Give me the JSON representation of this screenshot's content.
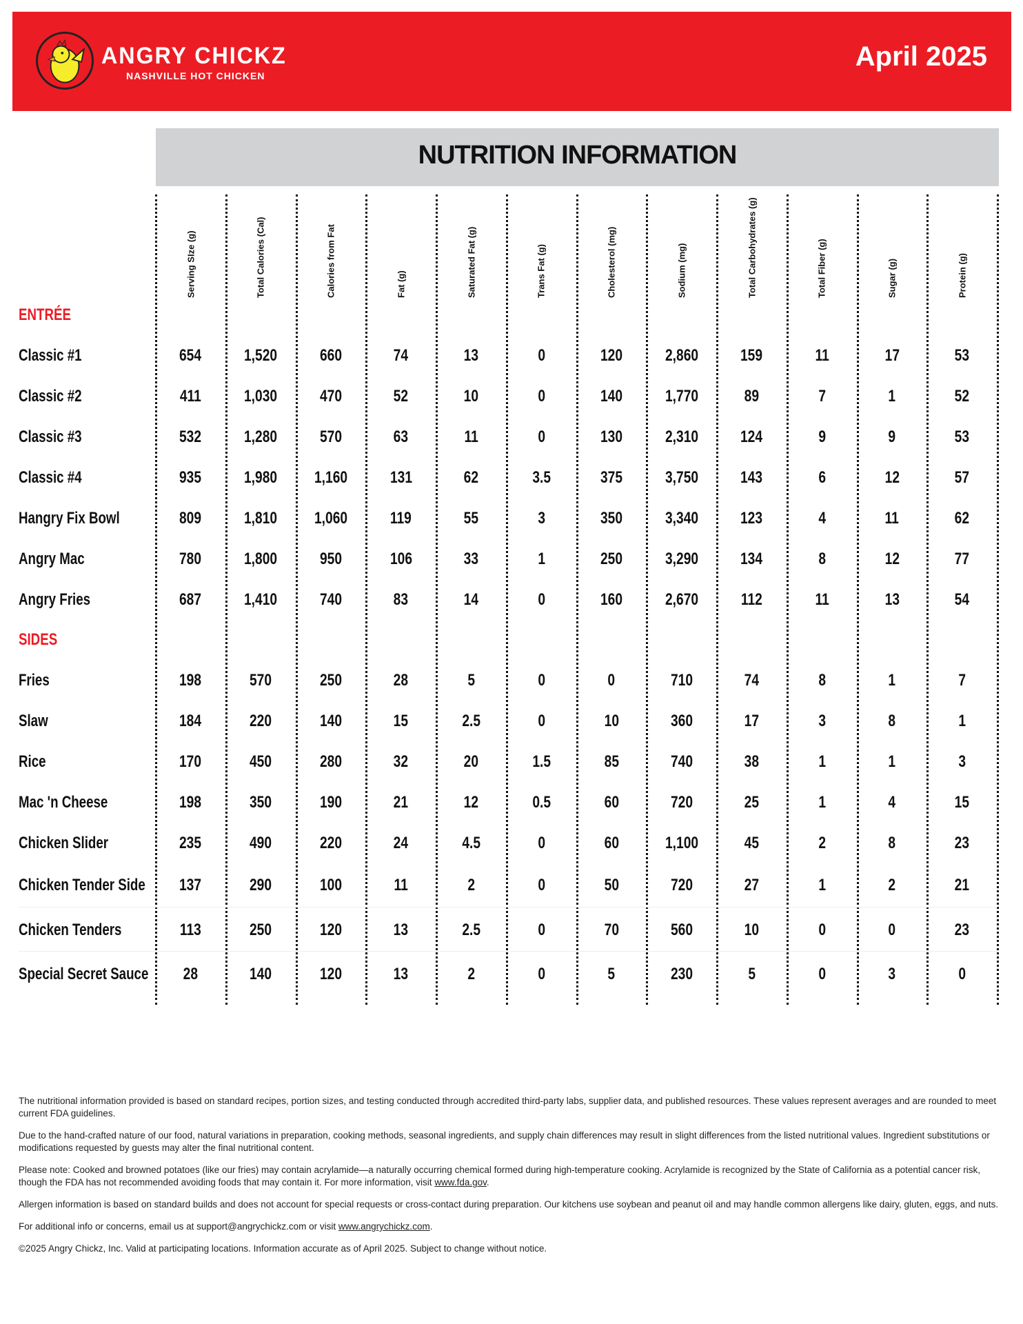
{
  "header": {
    "brand": "ANGRY CHICKZ",
    "tagline": "NASHVILLE HOT CHICKEN",
    "date": "April 2025",
    "brand_color": "#ec1c24"
  },
  "title": "NUTRITION INFORMATION",
  "columns": [
    "Serving SIze (g)",
    "Total Calories (Cal)",
    "Calories from Fat",
    "Fat (g)",
    "Saturated Fat (g)",
    "Trans Fat (g)",
    "Cholesterol (mg)",
    "Sodium (mg)",
    "Total Carbohydrates (g)",
    "Total Fiber (g)",
    "Sugar (g)",
    "Protein (g)"
  ],
  "sections": [
    {
      "label": "ENTRÉE",
      "rows": [
        {
          "name": "Classic #1",
          "values": [
            "654",
            "1,520",
            "660",
            "74",
            "13",
            "0",
            "120",
            "2,860",
            "159",
            "11",
            "17",
            "53"
          ]
        },
        {
          "name": "Classic #2",
          "values": [
            "411",
            "1,030",
            "470",
            "52",
            "10",
            "0",
            "140",
            "1,770",
            "89",
            "7",
            "1",
            "52"
          ]
        },
        {
          "name": "Classic #3",
          "values": [
            "532",
            "1,280",
            "570",
            "63",
            "11",
            "0",
            "130",
            "2,310",
            "124",
            "9",
            "9",
            "53"
          ]
        },
        {
          "name": "Classic #4",
          "values": [
            "935",
            "1,980",
            "1,160",
            "131",
            "62",
            "3.5",
            "375",
            "3,750",
            "143",
            "6",
            "12",
            "57"
          ]
        },
        {
          "name": "Hangry Fix Bowl",
          "values": [
            "809",
            "1,810",
            "1,060",
            "119",
            "55",
            "3",
            "350",
            "3,340",
            "123",
            "4",
            "11",
            "62"
          ]
        },
        {
          "name": "Angry Mac",
          "values": [
            "780",
            "1,800",
            "950",
            "106",
            "33",
            "1",
            "250",
            "3,290",
            "134",
            "8",
            "12",
            "77"
          ]
        },
        {
          "name": "Angry Fries",
          "values": [
            "687",
            "1,410",
            "740",
            "83",
            "14",
            "0",
            "160",
            "2,670",
            "112",
            "11",
            "13",
            "54"
          ]
        }
      ]
    },
    {
      "label": "SIDES",
      "rows": [
        {
          "name": "Fries",
          "values": [
            "198",
            "570",
            "250",
            "28",
            "5",
            "0",
            "0",
            "710",
            "74",
            "8",
            "1",
            "7"
          ]
        },
        {
          "name": "Slaw",
          "values": [
            "184",
            "220",
            "140",
            "15",
            "2.5",
            "0",
            "10",
            "360",
            "17",
            "3",
            "8",
            "1"
          ]
        },
        {
          "name": "Rice",
          "values": [
            "170",
            "450",
            "280",
            "32",
            "20",
            "1.5",
            "85",
            "740",
            "38",
            "1",
            "1",
            "3"
          ]
        },
        {
          "name": "Mac 'n Cheese",
          "values": [
            "198",
            "350",
            "190",
            "21",
            "12",
            "0.5",
            "60",
            "720",
            "25",
            "1",
            "4",
            "15"
          ]
        },
        {
          "name": "Chicken Slider",
          "values": [
            "235",
            "490",
            "220",
            "24",
            "4.5",
            "0",
            "60",
            "1,100",
            "45",
            "2",
            "8",
            "23"
          ]
        },
        {
          "name": "Chicken Tender Side",
          "values": [
            "137",
            "290",
            "100",
            "11",
            "2",
            "0",
            "50",
            "720",
            "27",
            "1",
            "2",
            "21"
          ]
        },
        {
          "name": "Chicken Tenders",
          "values": [
            "113",
            "250",
            "120",
            "13",
            "2.5",
            "0",
            "70",
            "560",
            "10",
            "0",
            "0",
            "23"
          ]
        },
        {
          "name": "Special Secret Sauce",
          "values": [
            "28",
            "140",
            "120",
            "13",
            "2",
            "0",
            "5",
            "230",
            "5",
            "0",
            "3",
            "0"
          ]
        }
      ]
    }
  ],
  "footer": {
    "p1": "The nutritional information provided is based on standard recipes, portion sizes, and testing conducted through accredited third-party labs, supplier data, and published resources. These values represent averages and are rounded to meet current FDA guidelines.",
    "p2": "Due to the hand-crafted nature of our food, natural variations in preparation, cooking methods, seasonal ingredients, and supply chain differences may result in slight differences from the listed nutritional values. Ingredient substitutions or modifications requested by guests may alter the final nutritional content.",
    "p3_text": "Please note: Cooked and browned potatoes (like our fries) may contain acrylamide—a naturally occurring chemical formed during high-temperature cooking. Acrylamide is recognized by the State of California as a potential cancer risk, though the FDA has not recommended avoiding foods that may contain it. For more information, visit ",
    "p3_link": "www.fda.gov",
    "p4": "Allergen information is based on standard builds and does not account for special requests or cross-contact during preparation. Our kitchens use soybean and peanut oil and may handle common allergens like dairy, gluten, eggs, and nuts.",
    "p5_text": "For additional info or concerns, email us at support@angrychickz.com or visit ",
    "p5_link": "www.angrychickz.com",
    "p6": "©2025 Angry Chickz, Inc. Valid at participating locations. Information accurate as of April 2025. Subject to change without notice."
  }
}
